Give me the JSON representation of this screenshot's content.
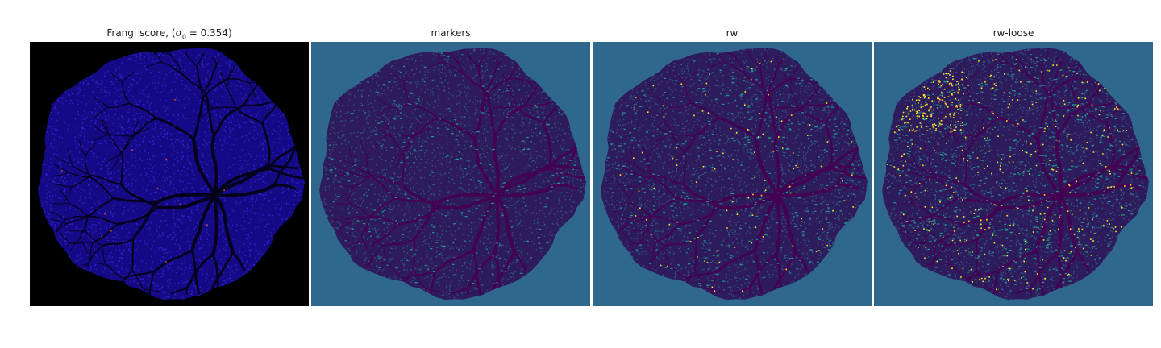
{
  "figure": {
    "panels": [
      {
        "id": "frangi",
        "title_prefix": "Frangi score, (",
        "title_sigma": "σ",
        "title_sub": "0",
        "title_eq": " = 0.354)",
        "cmap": "gnuplot2",
        "background": "#000000",
        "fill": "#140a86",
        "vessel": "#05031c",
        "speck": "#3a2be0",
        "hot": "#d04a3a",
        "hot_density": 0.0006
      },
      {
        "id": "markers",
        "title": "markers",
        "cmap": "viridis",
        "background": "#30678d",
        "fill": "#2d1b5c",
        "vessel": "#440154",
        "speck": "#31688e",
        "accent": "#21918c",
        "accent_density": 0.012,
        "hot_density": 0
      },
      {
        "id": "rw",
        "title": "rw",
        "cmap": "viridis",
        "background": "#30678d",
        "fill": "#2d1b5c",
        "vessel": "#440154",
        "speck": "#31688e",
        "accent": "#21918c",
        "accent_density": 0.018,
        "hot": "#fde725",
        "hot_density": 0.004
      },
      {
        "id": "rw-loose",
        "title": "rw-loose",
        "cmap": "viridis",
        "background": "#30678d",
        "fill": "#2d1b5c",
        "vessel": "#440154",
        "speck": "#31688e",
        "accent": "#21918c",
        "accent_density": 0.03,
        "hot": "#fde725",
        "hot_density": 0.02
      }
    ]
  }
}
